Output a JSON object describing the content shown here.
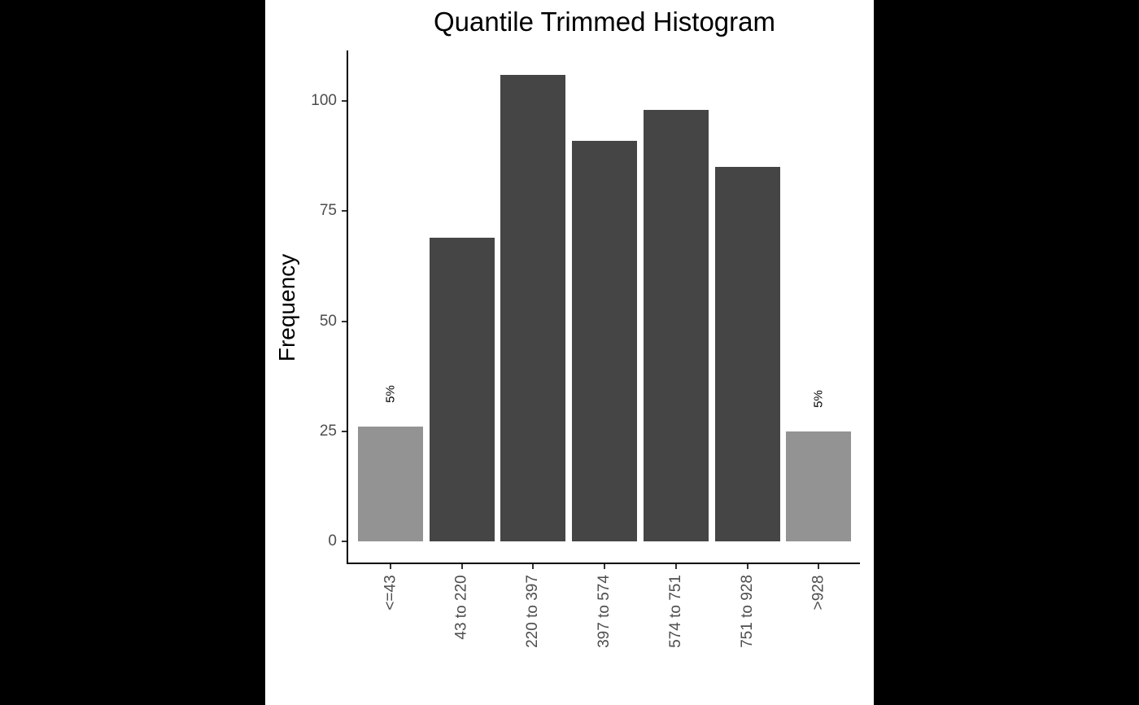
{
  "chart_data": {
    "type": "bar",
    "title": "Quantile Trimmed Histogram",
    "xlabel": "",
    "ylabel": "Frequency",
    "categories": [
      "<=43",
      "43 to 220",
      "220 to 397",
      "397 to 574",
      "574 to 751",
      "751 to 928",
      ">928"
    ],
    "values": [
      26,
      69,
      106,
      91,
      98,
      85,
      25
    ],
    "bar_colors": [
      "#939393",
      "#454545",
      "#454545",
      "#454545",
      "#454545",
      "#454545",
      "#939393"
    ],
    "annotations": [
      {
        "category": "<=43",
        "text": "5%"
      },
      {
        "category": ">928",
        "text": "5%"
      }
    ],
    "yticks": [
      0,
      25,
      50,
      75,
      100
    ],
    "ylim": [
      0,
      111
    ],
    "grid": false,
    "legend": null
  }
}
